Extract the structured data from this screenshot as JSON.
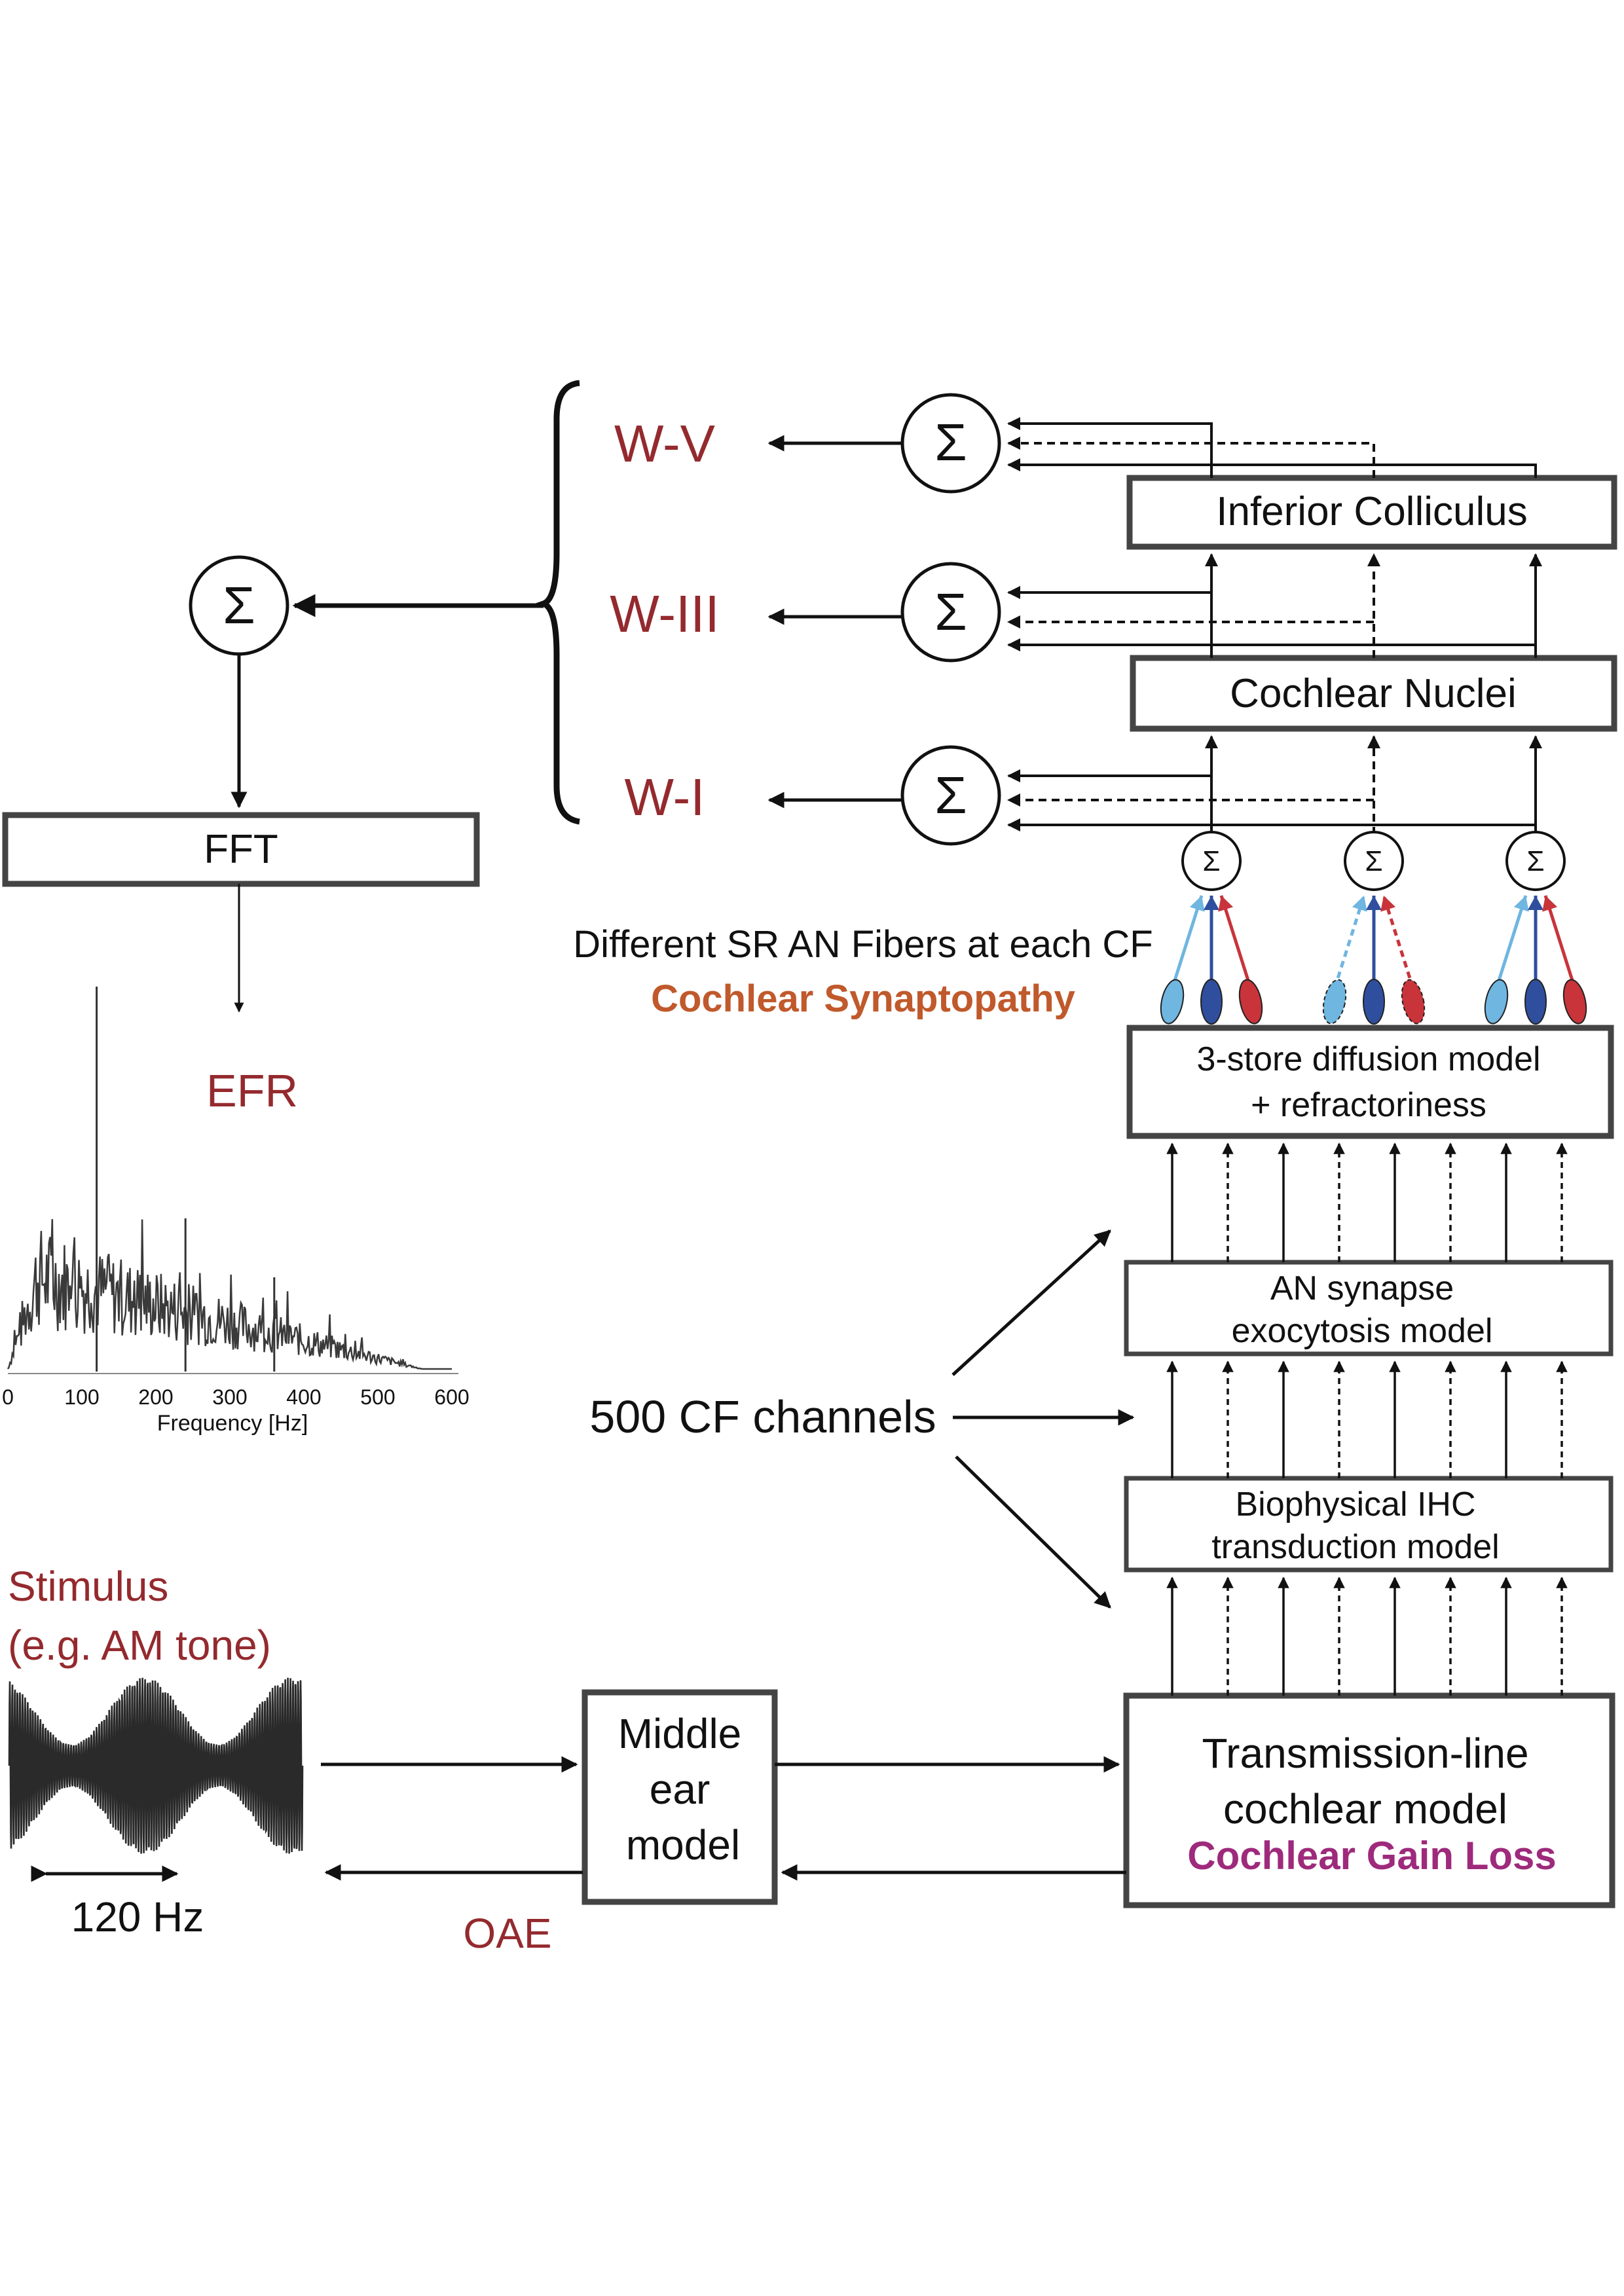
{
  "colors": {
    "wave_label": "#942a2e",
    "synaptopathy": "#c0592b",
    "gain_loss": "#9e2a7c",
    "box_border": "#444444",
    "arrow": "#111111",
    "fiber_low_sr": "#6fb6e0",
    "fiber_mid_sr": "#2f4f9e",
    "fiber_high_sr": "#c8343a"
  },
  "icons": {
    "sum_symbol": "Σ"
  },
  "waves": {
    "wv": "W-V",
    "wiii": "W-III",
    "wi": "W-I"
  },
  "boxes": {
    "inferior_colliculus": "Inferior Colliculus",
    "cochlear_nuclei": "Cochlear Nuclei",
    "fft": "FFT",
    "diffusion_line1": "3-store diffusion model",
    "diffusion_line2": "+ refractoriness",
    "synapse_line1": "AN synapse",
    "synapse_line2": "exocytosis model",
    "ihc_line1": "Biophysical IHC",
    "ihc_line2": "transduction model",
    "middle_ear_line1": "Middle",
    "middle_ear_line2": "ear",
    "middle_ear_line3": "model",
    "tl_line1": "Transmission-line",
    "tl_line2": "cochlear model"
  },
  "labels": {
    "fibers": "Different SR AN Fibers at each CF",
    "synaptopathy": "Cochlear Synaptopathy",
    "efr": "EFR",
    "cf_channels": "500 CF channels",
    "stimulus_line1": "Stimulus",
    "stimulus_line2": "(e.g. AM tone)",
    "modulation": "120 Hz",
    "oae": "OAE",
    "gain_loss": "Cochlear Gain Loss"
  },
  "efr_plot": {
    "xlabel": "Frequency [Hz]",
    "x_ticks": [
      "0",
      "100",
      "200",
      "300",
      "400",
      "500",
      "600"
    ],
    "xlim": [
      0,
      600
    ],
    "peaks": [
      {
        "freq": 120,
        "level": 0.98
      },
      {
        "freq": 240,
        "level": 0.39
      },
      {
        "freq": 360,
        "level": 0.24
      }
    ]
  }
}
